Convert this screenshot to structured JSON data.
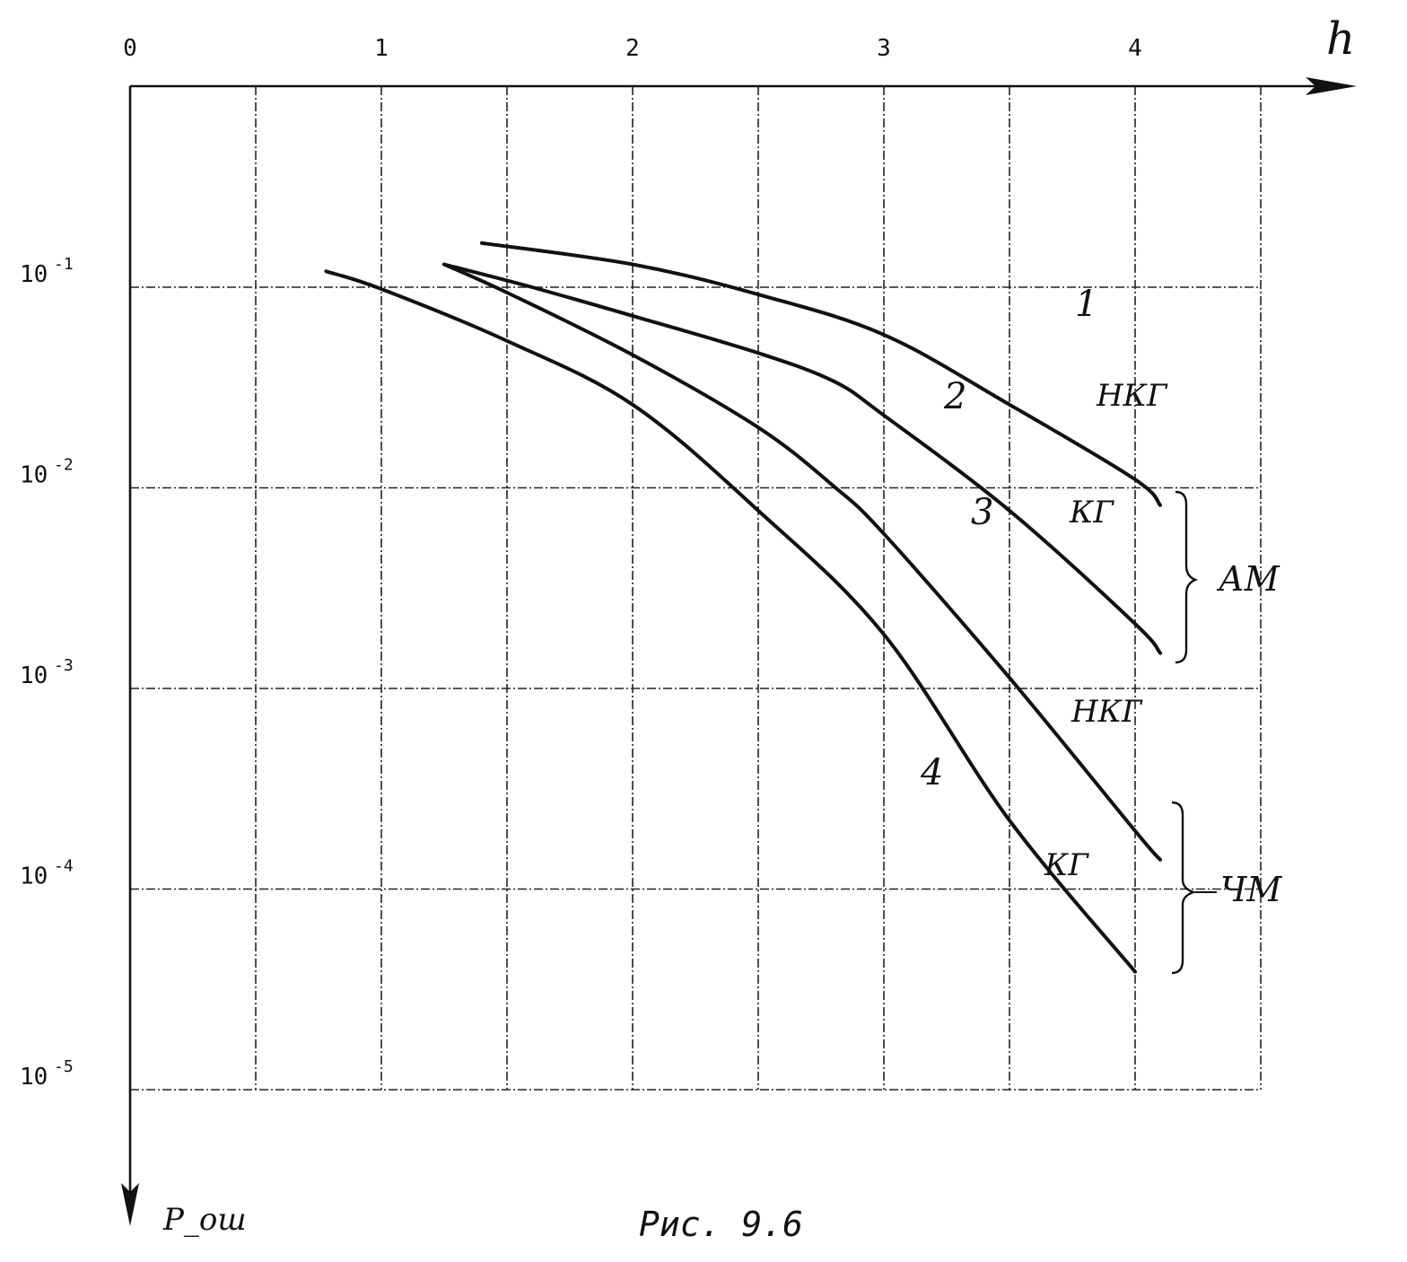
{
  "chart_data": {
    "type": "line",
    "title": "",
    "xlabel": "h",
    "ylabel": "P_ош",
    "caption": "Рис. 9.6",
    "x_ticks": [
      "0",
      "1",
      "2",
      "3",
      "4"
    ],
    "y_ticks": [
      {
        "base": "10",
        "exp": "-1"
      },
      {
        "base": "10",
        "exp": "-2"
      },
      {
        "base": "10",
        "exp": "-3"
      },
      {
        "base": "10",
        "exp": "-4"
      },
      {
        "base": "10",
        "exp": "-5"
      }
    ],
    "xlim": [
      0,
      4.5
    ],
    "ylim": [
      1e-05,
      0.2
    ],
    "y_scale": "log",
    "y_direction": "down",
    "grid": true,
    "series": [
      {
        "name": "1",
        "x": [
          1.4,
          2.0,
          2.5,
          3.0,
          3.5,
          4.0,
          4.1
        ],
        "y": [
          0.166,
          0.13,
          0.092,
          0.058,
          0.026,
          0.011,
          0.0082
        ]
      },
      {
        "name": "2",
        "x": [
          1.25,
          1.6,
          2.0,
          2.5,
          2.8,
          3.0,
          3.5,
          4.0,
          4.1
        ],
        "y": [
          0.13,
          0.1,
          0.072,
          0.047,
          0.034,
          0.023,
          0.0077,
          0.0021,
          0.0015
        ]
      },
      {
        "name": "3",
        "x": [
          1.25,
          1.5,
          2.0,
          2.5,
          2.8,
          3.0,
          3.5,
          4.0,
          4.1
        ],
        "y": [
          0.13,
          0.094,
          0.046,
          0.02,
          0.0102,
          0.0059,
          0.00113,
          0.000195,
          0.00014
        ]
      },
      {
        "name": "4",
        "x": [
          0.78,
          1.0,
          1.5,
          2.0,
          2.5,
          3.0,
          3.5,
          4.0
        ],
        "y": [
          0.12,
          0.098,
          0.054,
          0.026,
          0.0077,
          0.00186,
          0.00022,
          3.87e-05
        ]
      }
    ],
    "annotations": {
      "curve_numbers": [
        "1",
        "2",
        "3",
        "4"
      ],
      "labels": [
        "НКГ",
        "КГ",
        "НКГ",
        "КГ"
      ],
      "group_labels": [
        "АМ",
        "ЧМ"
      ]
    }
  }
}
